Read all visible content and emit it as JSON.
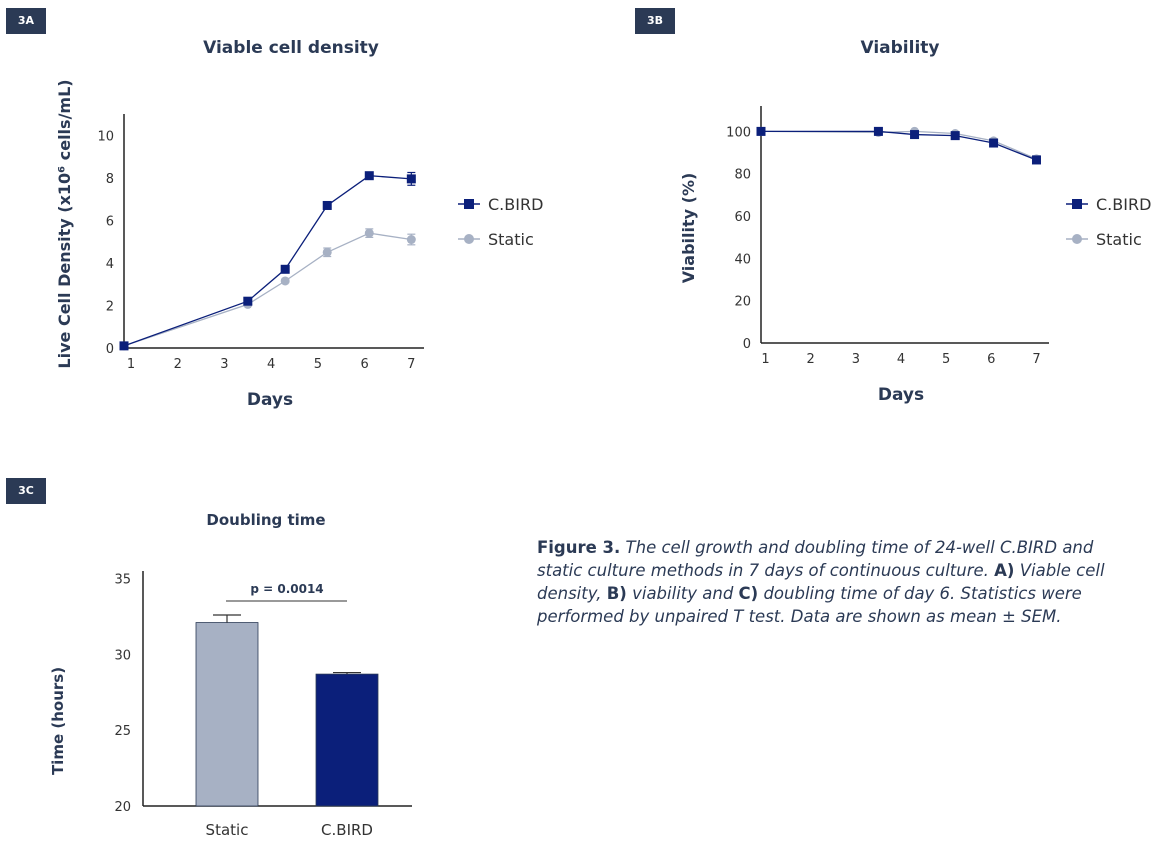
{
  "panels": {
    "a_tag": "3A",
    "b_tag": "3B",
    "c_tag": "3C"
  },
  "caption": {
    "lead": "Figure 3.",
    "part1": " The cell growth and doubling time of 24-well C.BIRD and static culture methods in 7 days of continuous culture. ",
    "a": "A)",
    "part2": " Viable cell density, ",
    "b": "B)",
    "part3": " viability and ",
    "c": "C)",
    "part4": " doubling time of day 6. Statistics were performed by unpaired T test. Data are shown as mean ± SEM."
  },
  "colors": {
    "cbird": "#0b1f7a",
    "static": "#a7b1c4",
    "axis": "#222222",
    "text": "#2b3a55"
  },
  "chart_data": [
    {
      "id": "3A",
      "type": "line",
      "title": "Viable cell density",
      "xlabel": "Days",
      "ylabel": "Live Cell Density (x10⁶ cells/mL)",
      "xticks": [
        1,
        2,
        3,
        4,
        5,
        6,
        7
      ],
      "yticks": [
        0,
        2,
        4,
        6,
        8,
        10
      ],
      "xlim": [
        0.85,
        7.1
      ],
      "ylim": [
        0,
        11
      ],
      "legend": "right",
      "series": [
        {
          "name": "C.BIRD",
          "marker": "square",
          "x": [
            0.85,
            3.5,
            4.3,
            5.2,
            6.1,
            7.0
          ],
          "y": [
            0.1,
            2.2,
            3.7,
            6.7,
            8.1,
            7.95
          ],
          "err": [
            0,
            0.05,
            0.05,
            0.1,
            0.1,
            0.3
          ]
        },
        {
          "name": "Static",
          "marker": "circle",
          "x": [
            0.85,
            3.5,
            4.3,
            5.2,
            6.1,
            7.0
          ],
          "y": [
            0.1,
            2.05,
            3.15,
            4.5,
            5.4,
            5.1
          ],
          "err": [
            0,
            0.05,
            0.08,
            0.2,
            0.2,
            0.25
          ]
        }
      ]
    },
    {
      "id": "3B",
      "type": "line",
      "title": "Viability",
      "xlabel": "Days",
      "ylabel": "Viability (%)",
      "xticks": [
        1,
        2,
        3,
        4,
        5,
        6,
        7
      ],
      "yticks": [
        0,
        20,
        40,
        60,
        80,
        100
      ],
      "xlim": [
        0.9,
        7.1
      ],
      "ylim": [
        0,
        112
      ],
      "legend": "right",
      "series": [
        {
          "name": "C.BIRD",
          "marker": "square",
          "x": [
            0.9,
            3.5,
            4.3,
            5.2,
            6.05,
            7.0
          ],
          "y": [
            100,
            100,
            98.5,
            98,
            94.5,
            86.5
          ],
          "err": [
            0,
            0.5,
            0.5,
            0.5,
            1,
            1.5
          ]
        },
        {
          "name": "Static",
          "marker": "circle",
          "x": [
            0.9,
            3.5,
            4.3,
            5.2,
            6.05,
            7.0
          ],
          "y": [
            100,
            99.5,
            100,
            99,
            95.5,
            87
          ],
          "err": [
            0,
            0.5,
            0.5,
            0.5,
            1,
            1.5
          ]
        }
      ]
    },
    {
      "id": "3C",
      "type": "bar",
      "title": "Doubling time",
      "xlabel": "",
      "ylabel": "Time (hours)",
      "categories": [
        "Static",
        "C.BIRD"
      ],
      "values": [
        32.1,
        28.7
      ],
      "err": [
        0.5,
        0.1
      ],
      "yticks": [
        20,
        25,
        30,
        35
      ],
      "ylim": [
        20,
        35.5
      ],
      "annotation": "p = 0.0014"
    }
  ]
}
